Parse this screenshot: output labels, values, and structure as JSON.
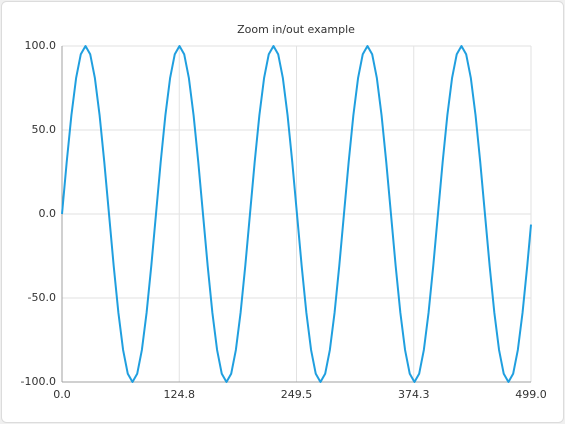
{
  "chart_data": {
    "type": "line",
    "title": "Zoom in/out example",
    "x": [
      0,
      5,
      10,
      15,
      20,
      25,
      30,
      35,
      40,
      45,
      50,
      55,
      60,
      65,
      70,
      75,
      80,
      85,
      90,
      95,
      100,
      105,
      110,
      115,
      120,
      125,
      130,
      135,
      140,
      145,
      150,
      155,
      160,
      165,
      170,
      175,
      180,
      185,
      190,
      195,
      200,
      205,
      210,
      215,
      220,
      225,
      230,
      235,
      240,
      245,
      250,
      255,
      260,
      265,
      270,
      275,
      280,
      285,
      290,
      295,
      300,
      305,
      310,
      315,
      320,
      325,
      330,
      335,
      340,
      345,
      350,
      355,
      360,
      365,
      370,
      375,
      380,
      385,
      390,
      395,
      400,
      405,
      410,
      415,
      420,
      425,
      430,
      435,
      440,
      445,
      450,
      455,
      460,
      465,
      470,
      475,
      480,
      485,
      490,
      495,
      499
    ],
    "series": [
      {
        "color": "#209fdf",
        "values": [
          0,
          30.9,
          58.8,
          80.9,
          95.1,
          100,
          95.1,
          80.9,
          58.8,
          30.9,
          0,
          -30.9,
          -58.8,
          -80.9,
          -95.1,
          -100,
          -95.1,
          -80.9,
          -58.8,
          -30.9,
          0,
          30.9,
          58.8,
          80.9,
          95.1,
          100,
          95.1,
          80.9,
          58.8,
          30.9,
          0,
          -30.9,
          -58.8,
          -80.9,
          -95.1,
          -100,
          -95.1,
          -80.9,
          -58.8,
          -30.9,
          0,
          30.9,
          58.8,
          80.9,
          95.1,
          100,
          95.1,
          80.9,
          58.8,
          30.9,
          0,
          -30.9,
          -58.8,
          -80.9,
          -95.1,
          -100,
          -95.1,
          -80.9,
          -58.8,
          -30.9,
          0,
          30.9,
          58.8,
          80.9,
          95.1,
          100,
          95.1,
          80.9,
          58.8,
          30.9,
          0,
          -30.9,
          -58.8,
          -80.9,
          -95.1,
          -100,
          -95.1,
          -80.9,
          -58.8,
          -30.9,
          0,
          30.9,
          58.8,
          80.9,
          95.1,
          100,
          95.1,
          80.9,
          58.8,
          30.9,
          0,
          -30.9,
          -58.8,
          -80.9,
          -95.1,
          -100,
          -95.1,
          -80.9,
          -58.8,
          -30.9,
          -6.3
        ]
      }
    ],
    "xlim": [
      0,
      499
    ],
    "xticks": [
      {
        "value": 0,
        "label": "0.0"
      },
      {
        "value": 124.75,
        "label": "124.8"
      },
      {
        "value": 249.5,
        "label": "249.5"
      },
      {
        "value": 374.25,
        "label": "374.3"
      },
      {
        "value": 499,
        "label": "499.0"
      }
    ],
    "ylim": [
      -100,
      100
    ],
    "yticks": [
      {
        "value": -100,
        "label": "-100.0"
      },
      {
        "value": -50,
        "label": "-50.0"
      },
      {
        "value": 0,
        "label": "0.0"
      },
      {
        "value": 50,
        "label": "50.0"
      },
      {
        "value": 100,
        "label": "100.0"
      }
    ],
    "grid": true
  }
}
